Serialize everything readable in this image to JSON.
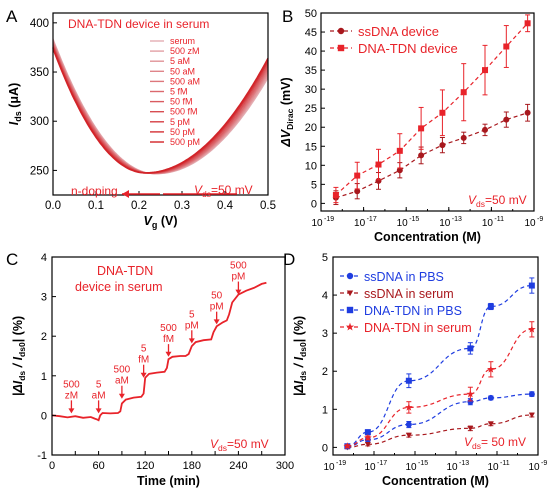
{
  "panels": {
    "a": {
      "letter": "A"
    },
    "b": {
      "letter": "B"
    },
    "c": {
      "letter": "C"
    },
    "d": {
      "letter": "D"
    }
  },
  "colors": {
    "red": "#e8232a",
    "dark_red": "#a8181d",
    "blue": "#1f3de0",
    "navy": "#1c1a80",
    "ink": "#000000"
  },
  "chart_data": [
    {
      "panel": "A",
      "type": "line",
      "title": "DNA-TDN device  in serum",
      "xlabel": "V",
      "xlabel_sub": "g",
      "xlabel_unit": " (V)",
      "ylabel": "I",
      "ylabel_sub": "ds",
      "ylabel_unit": " (μA)",
      "xlim": [
        0.0,
        0.5
      ],
      "ylim": [
        225,
        410
      ],
      "xticks": [
        "0.0",
        "0.1",
        "0.2",
        "0.3",
        "0.4",
        "0.5"
      ],
      "yticks": [
        "250",
        "300",
        "350",
        "400"
      ],
      "legend_position": "top-right",
      "series": [
        {
          "name": "serum",
          "min_x": 0.24,
          "min_y": 246.5,
          "y0": 384,
          "y_end": 344
        },
        {
          "name": "500 zM",
          "min_x": 0.238,
          "min_y": 246.6,
          "y0": 383,
          "y_end": 346
        },
        {
          "name": "5 aM",
          "min_x": 0.236,
          "min_y": 246.7,
          "y0": 382,
          "y_end": 348
        },
        {
          "name": "50 aM",
          "min_x": 0.234,
          "min_y": 246.8,
          "y0": 381,
          "y_end": 350
        },
        {
          "name": "500 aM",
          "min_x": 0.232,
          "min_y": 246.9,
          "y0": 380,
          "y_end": 352
        },
        {
          "name": "5 fM",
          "min_x": 0.23,
          "min_y": 247.0,
          "y0": 379,
          "y_end": 354
        },
        {
          "name": "50 fM",
          "min_x": 0.227,
          "min_y": 247.1,
          "y0": 378,
          "y_end": 356
        },
        {
          "name": "500 fM",
          "min_x": 0.224,
          "min_y": 247.2,
          "y0": 377,
          "y_end": 358
        },
        {
          "name": "5 pM",
          "min_x": 0.221,
          "min_y": 247.3,
          "y0": 376,
          "y_end": 360
        },
        {
          "name": "50 pM",
          "min_x": 0.218,
          "min_y": 247.4,
          "y0": 375,
          "y_end": 362
        },
        {
          "name": "500 pM",
          "min_x": 0.215,
          "min_y": 247.5,
          "y0": 374,
          "y_end": 364
        }
      ],
      "annotation_doping": "n-doping",
      "annotation_vds": "V",
      "annotation_vds_sub": "ds",
      "annotation_vds_val": "=50 mV"
    },
    {
      "panel": "B",
      "type": "line",
      "xlabel": "Concentration (M)",
      "ylabel": "ΔV",
      "ylabel_sub": "Dirac",
      "ylabel_unit": " (mV)",
      "xscale": "log",
      "xlim_exp": [
        -19,
        -9
      ],
      "ylim": [
        -2,
        50
      ],
      "xticks": [
        "10",
        "10",
        "10",
        "10",
        "10",
        "10"
      ],
      "xtick_exps": [
        "-19",
        "-17",
        "-15",
        "-13",
        "-11",
        "-9"
      ],
      "yticks": [
        "0",
        "5",
        "10",
        "15",
        "20",
        "25",
        "30",
        "35",
        "40",
        "45",
        "50"
      ],
      "legend_position": "top-left",
      "x_exp": [
        -18.3,
        -17.3,
        -16.3,
        -15.3,
        -14.3,
        -13.3,
        -12.3,
        -11.3,
        -10.3,
        -9.3
      ],
      "series": [
        {
          "name": "ssDNA device",
          "marker": "circle",
          "values": [
            1.5,
            3.2,
            5.9,
            8.7,
            12.6,
            15.3,
            17.2,
            19.3,
            22.0,
            23.8
          ],
          "errors": [
            1.8,
            2.0,
            2.2,
            2.0,
            2.2,
            2.0,
            1.5,
            1.5,
            2.0,
            2.2
          ]
        },
        {
          "name": "DNA-TDN device",
          "marker": "square",
          "values": [
            2.2,
            7.3,
            10.2,
            13.8,
            19.7,
            23.8,
            29.2,
            35.0,
            41.2,
            47.3
          ],
          "errors": [
            2.0,
            3.5,
            4.0,
            4.5,
            5.5,
            6.0,
            7.5,
            6.5,
            5.5,
            2.2
          ]
        }
      ],
      "annotation_vds": "V",
      "annotation_vds_sub": "ds",
      "annotation_vds_val": "=50 mV"
    },
    {
      "panel": "C",
      "type": "line",
      "title_line1": "DNA-TDN",
      "title_line2": "device in serum",
      "xlabel": "Time (min)",
      "ylabel_prefix": "|ΔI",
      "ylabel_sub1": "ds",
      "ylabel_mid": " / I",
      "ylabel_sub2": "ds0",
      "ylabel_suffix": "| (%)",
      "xlim": [
        0,
        300
      ],
      "ylim": [
        -1,
        4
      ],
      "xticks": [
        "0",
        "30",
        "60",
        "90",
        "120",
        "150",
        "180",
        "210",
        "240",
        "270",
        "300"
      ],
      "yticks": [
        "-1",
        "0",
        "1",
        "2",
        "3",
        "4"
      ],
      "points": [
        [
          0,
          0.0
        ],
        [
          10,
          -0.02
        ],
        [
          20,
          -0.05
        ],
        [
          30,
          -0.02
        ],
        [
          40,
          -0.06
        ],
        [
          50,
          -0.04
        ],
        [
          55,
          -0.08
        ],
        [
          58,
          -0.1
        ],
        [
          60,
          -0.12
        ],
        [
          62,
          0.0
        ],
        [
          65,
          0.06
        ],
        [
          75,
          0.05
        ],
        [
          85,
          0.06
        ],
        [
          88,
          0.1
        ],
        [
          90,
          0.3
        ],
        [
          95,
          0.4
        ],
        [
          105,
          0.45
        ],
        [
          115,
          0.47
        ],
        [
          118,
          0.55
        ],
        [
          120,
          0.95
        ],
        [
          125,
          1.05
        ],
        [
          135,
          1.08
        ],
        [
          145,
          1.1
        ],
        [
          148,
          1.2
        ],
        [
          150,
          1.42
        ],
        [
          155,
          1.48
        ],
        [
          165,
          1.5
        ],
        [
          172,
          1.5
        ],
        [
          176,
          1.55
        ],
        [
          180,
          1.75
        ],
        [
          185,
          1.85
        ],
        [
          195,
          1.9
        ],
        [
          205,
          1.92
        ],
        [
          208,
          2.1
        ],
        [
          212,
          2.25
        ],
        [
          220,
          2.35
        ],
        [
          225,
          2.4
        ],
        [
          228,
          2.55
        ],
        [
          232,
          2.85
        ],
        [
          240,
          3.05
        ],
        [
          250,
          3.15
        ],
        [
          260,
          3.22
        ],
        [
          270,
          3.32
        ],
        [
          276,
          3.35
        ]
      ],
      "annotations": [
        {
          "line1": "500",
          "line2": "zM",
          "x": 25,
          "tip_y": 0.05,
          "base_y": 0.38
        },
        {
          "line1": "5",
          "line2": "aM",
          "x": 60,
          "tip_y": 0.05,
          "base_y": 0.38
        },
        {
          "line1": "500",
          "line2": "aM",
          "x": 90,
          "tip_y": 0.42,
          "base_y": 0.75
        },
        {
          "line1": "5",
          "line2": "fM",
          "x": 118,
          "tip_y": 0.95,
          "base_y": 1.28
        },
        {
          "line1": "500",
          "line2": "fM",
          "x": 150,
          "tip_y": 1.48,
          "base_y": 1.8
        },
        {
          "line1": "5",
          "line2": "pM",
          "x": 180,
          "tip_y": 1.82,
          "base_y": 2.15
        },
        {
          "line1": "50",
          "line2": "pM",
          "x": 212,
          "tip_y": 2.3,
          "base_y": 2.62
        },
        {
          "line1": "500",
          "line2": "pM",
          "x": 240,
          "tip_y": 3.05,
          "base_y": 3.38
        }
      ],
      "annotation_vds": "V",
      "annotation_vds_sub": "ds",
      "annotation_vds_val": "=50 mV"
    },
    {
      "panel": "D",
      "type": "line",
      "xlabel": "Concentration (M)",
      "ylabel_prefix": "|ΔI",
      "ylabel_sub1": "ds",
      "ylabel_mid": " / I",
      "ylabel_sub2": "ds0",
      "ylabel_suffix": "| (%)",
      "xscale": "log",
      "xlim_exp": [
        -19,
        -9
      ],
      "ylim": [
        -0.2,
        5
      ],
      "xticks": [
        "10",
        "10",
        "10",
        "10",
        "10",
        "10"
      ],
      "xtick_exps": [
        "-19",
        "-17",
        "-15",
        "-13",
        "-11",
        "-9"
      ],
      "yticks": [
        "0",
        "1",
        "2",
        "3",
        "4",
        "5"
      ],
      "legend_position": "top-left",
      "x_exp": [
        -18.3,
        -17.3,
        -15.3,
        -12.3,
        -11.3,
        -9.3
      ],
      "series": [
        {
          "name": "ssDNA in PBS",
          "marker": "circle",
          "values": [
            0.02,
            0.2,
            0.6,
            1.2,
            1.3,
            1.4
          ],
          "errors": [
            0.04,
            0.06,
            0.08,
            0.08,
            0.05,
            0.06
          ]
        },
        {
          "name": "ssDNA in serum",
          "marker": "triangle-down",
          "values": [
            0.0,
            0.08,
            0.32,
            0.5,
            0.62,
            0.85
          ],
          "errors": [
            0.03,
            0.04,
            0.05,
            0.06,
            0.05,
            0.05
          ]
        },
        {
          "name": "DNA-TDN in PBS",
          "marker": "square",
          "values": [
            0.03,
            0.4,
            1.75,
            2.6,
            3.7,
            4.25
          ],
          "errors": [
            0.04,
            0.06,
            0.18,
            0.15,
            0.08,
            0.2
          ]
        },
        {
          "name": "DNA-TDN in serum",
          "marker": "star",
          "values": [
            0.03,
            0.25,
            1.05,
            1.4,
            2.05,
            3.1
          ],
          "errors": [
            0.04,
            0.05,
            0.15,
            0.18,
            0.2,
            0.2
          ]
        }
      ],
      "annotation_vds": "V",
      "annotation_vds_sub": "ds",
      "annotation_vds_val": "= 50 mV"
    }
  ]
}
